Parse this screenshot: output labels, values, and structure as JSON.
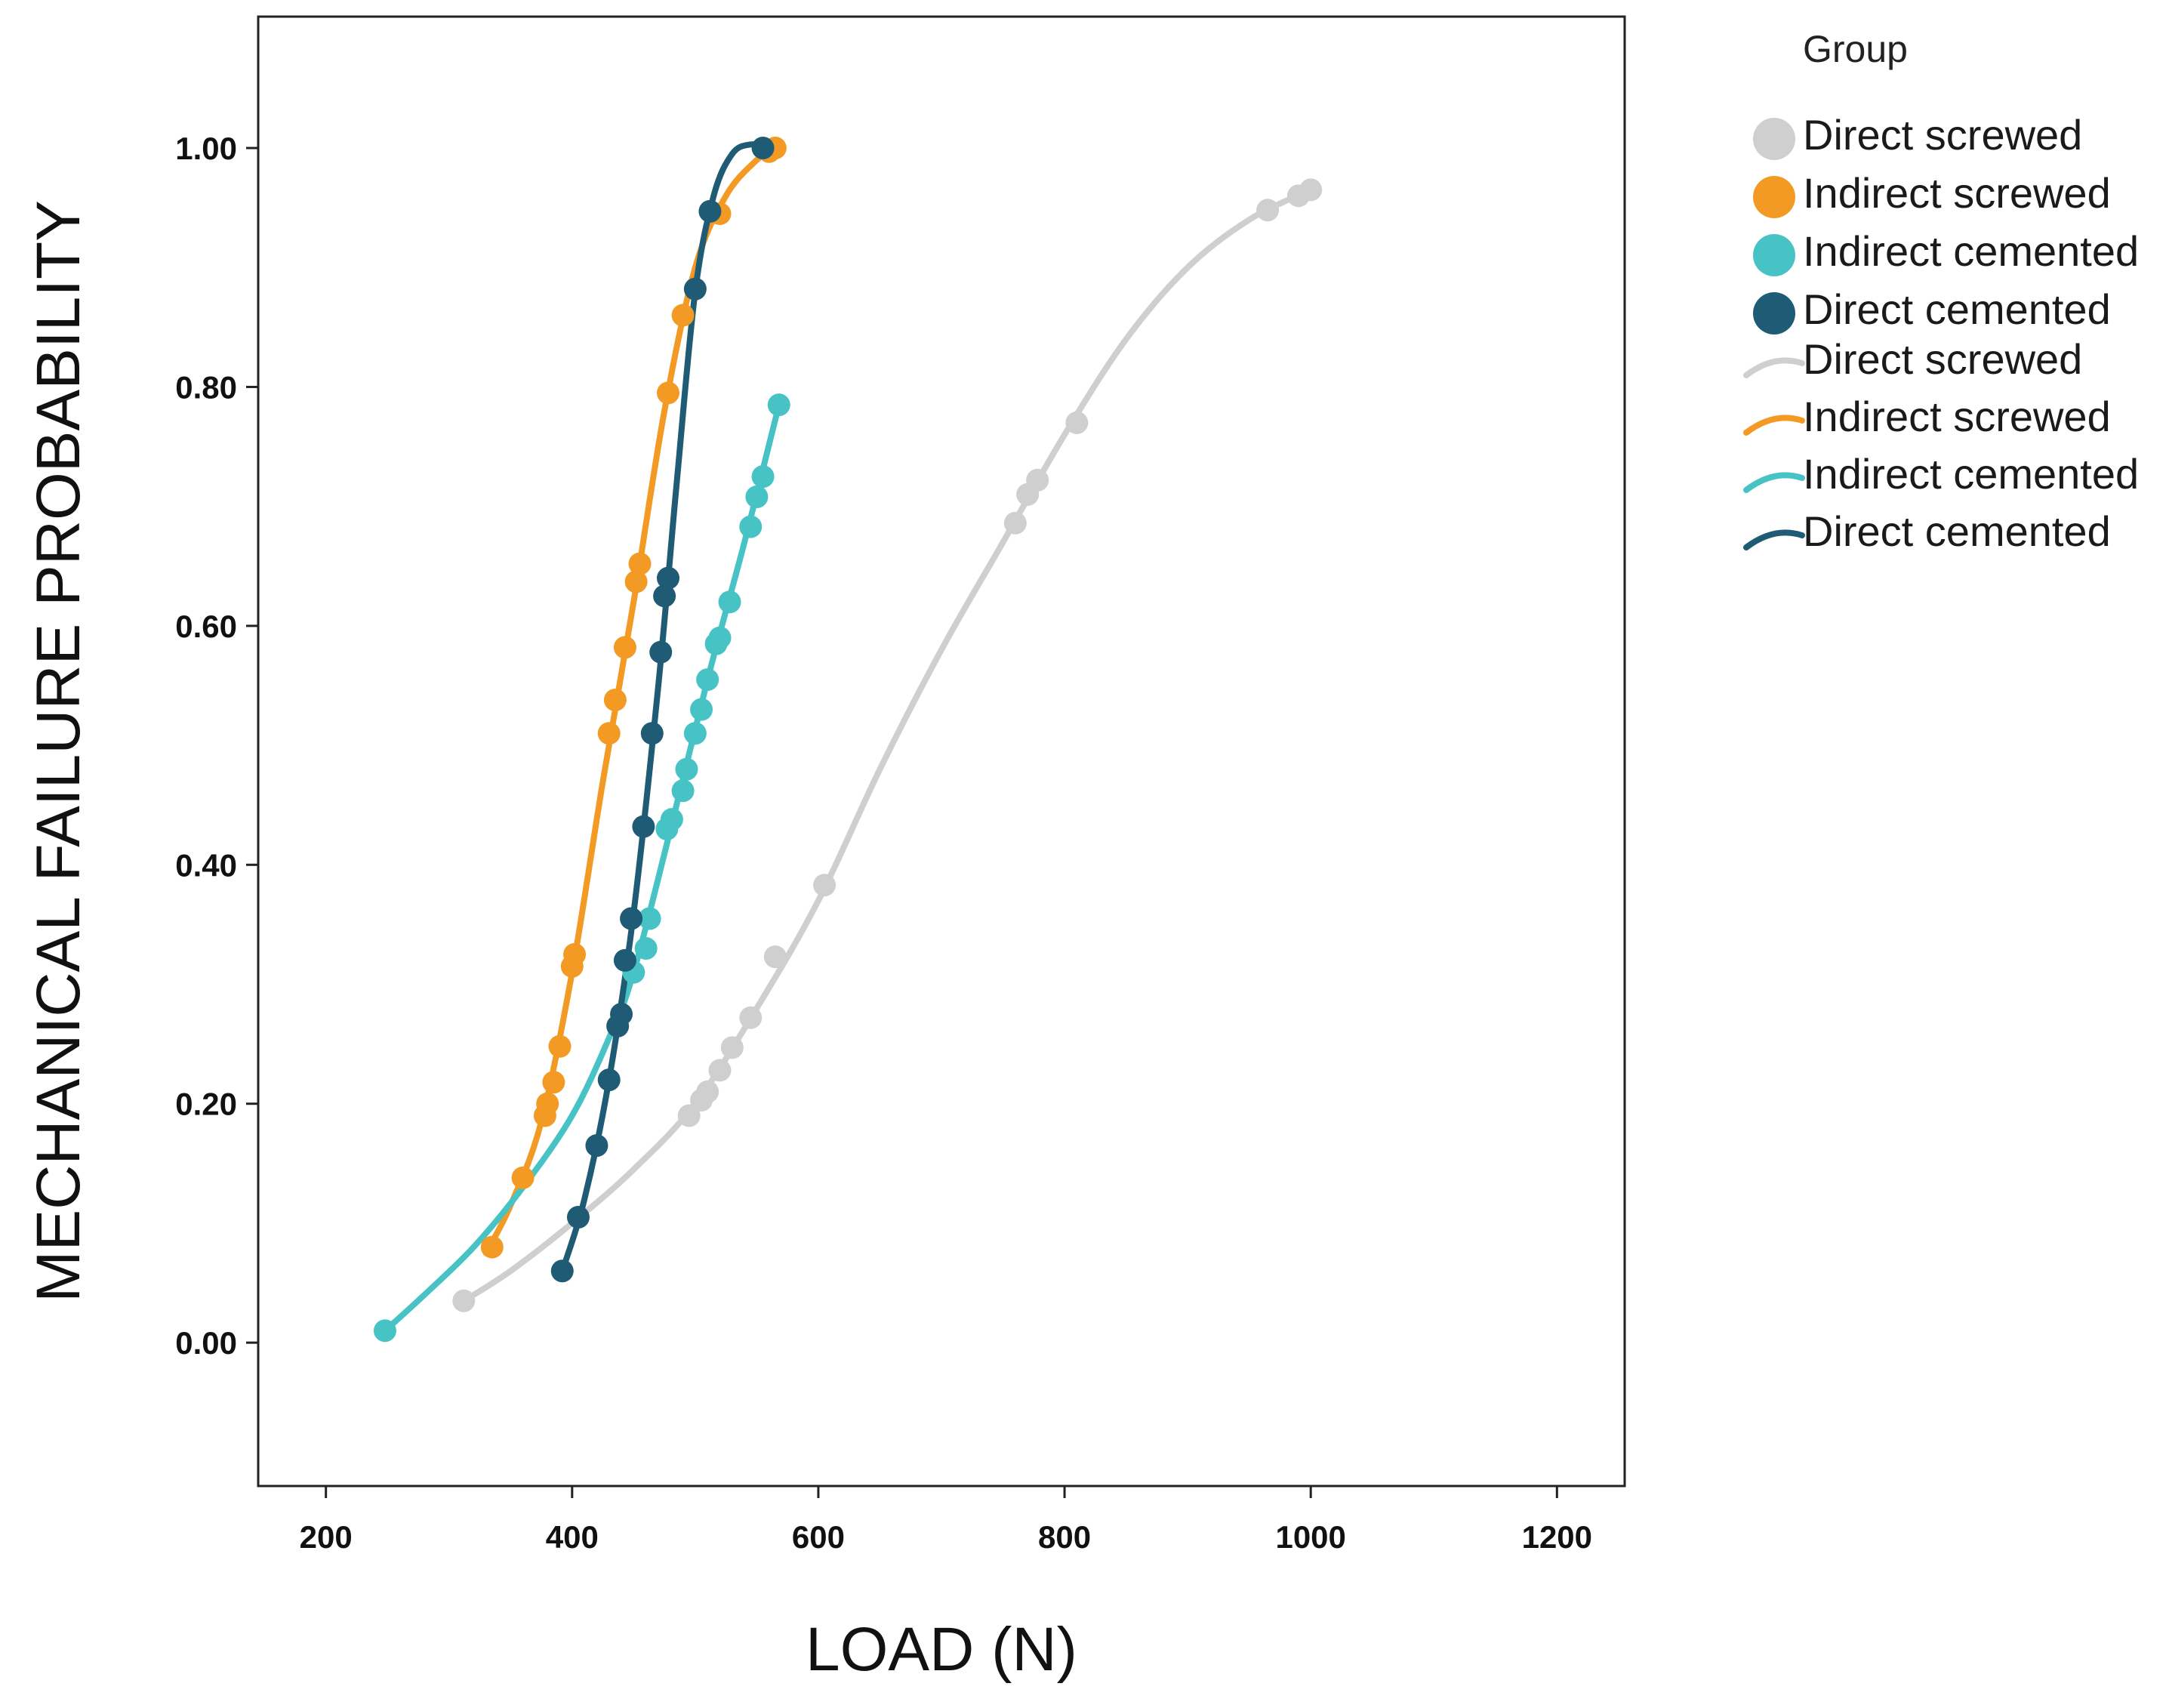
{
  "chart_data": {
    "type": "line",
    "title": "",
    "xlabel": "LOAD (N)",
    "ylabel": "MECHANICAL FAILURE PROBABILITY",
    "xlim": [
      145,
      1255
    ],
    "ylim": [
      -0.12,
      1.11
    ],
    "xticks": [
      200,
      400,
      600,
      800,
      1000,
      1200
    ],
    "xtick_labels": [
      "200",
      "400",
      "600",
      "800",
      "1000",
      "1200"
    ],
    "yticks": [
      0,
      0.2,
      0.4,
      0.6,
      0.8,
      1.0
    ],
    "ytick_labels": [
      "0.00",
      "0.20",
      "0.40",
      "0.60",
      "0.80",
      "1.00"
    ],
    "grid": false,
    "legend": {
      "title": "Group",
      "placement": "right",
      "marker_entries": [
        "Direct screwed",
        "Indirect screwed",
        "Indirect cemented",
        "Direct cemented"
      ],
      "line_entries": [
        "Direct screwed",
        "Indirect screwed",
        "Indirect cemented",
        "Direct cemented"
      ]
    },
    "series": [
      {
        "name": "Direct screwed",
        "color": "#cfcfcf",
        "points": [
          [
            312,
            0.035
          ],
          [
            495,
            0.19
          ],
          [
            505,
            0.203
          ],
          [
            510,
            0.21
          ],
          [
            520,
            0.228
          ],
          [
            530,
            0.247
          ],
          [
            545,
            0.272
          ],
          [
            565,
            0.323
          ],
          [
            605,
            0.383
          ],
          [
            760,
            0.686
          ],
          [
            770,
            0.71
          ],
          [
            778,
            0.722
          ],
          [
            810,
            0.77
          ],
          [
            965,
            0.948
          ],
          [
            990,
            0.96
          ],
          [
            1000,
            0.965
          ]
        ],
        "curve": [
          [
            312,
            0.035
          ],
          [
            350,
            0.06
          ],
          [
            400,
            0.1
          ],
          [
            450,
            0.145
          ],
          [
            500,
            0.2
          ],
          [
            550,
            0.28
          ],
          [
            600,
            0.37
          ],
          [
            650,
            0.48
          ],
          [
            700,
            0.58
          ],
          [
            750,
            0.67
          ],
          [
            800,
            0.76
          ],
          [
            850,
            0.84
          ],
          [
            900,
            0.9
          ],
          [
            950,
            0.94
          ],
          [
            1000,
            0.965
          ]
        ]
      },
      {
        "name": "Indirect screwed",
        "color": "#f39a24",
        "points": [
          [
            335,
            0.08
          ],
          [
            360,
            0.138
          ],
          [
            378,
            0.19
          ],
          [
            380,
            0.2
          ],
          [
            385,
            0.218
          ],
          [
            390,
            0.248
          ],
          [
            400,
            0.315
          ],
          [
            402,
            0.325
          ],
          [
            430,
            0.51
          ],
          [
            435,
            0.538
          ],
          [
            443,
            0.582
          ],
          [
            452,
            0.637
          ],
          [
            455,
            0.652
          ],
          [
            478,
            0.795
          ],
          [
            490,
            0.86
          ],
          [
            520,
            0.945
          ],
          [
            560,
            0.997
          ],
          [
            565,
            1.0
          ]
        ],
        "curve": [
          [
            330,
            0.075
          ],
          [
            350,
            0.115
          ],
          [
            375,
            0.185
          ],
          [
            400,
            0.31
          ],
          [
            425,
            0.47
          ],
          [
            450,
            0.62
          ],
          [
            475,
            0.78
          ],
          [
            500,
            0.9
          ],
          [
            525,
            0.96
          ],
          [
            550,
            0.99
          ],
          [
            565,
            1.0
          ]
        ]
      },
      {
        "name": "Indirect cemented",
        "color": "#47c3c5",
        "points": [
          [
            248,
            0.01
          ],
          [
            450,
            0.31
          ],
          [
            460,
            0.33
          ],
          [
            463,
            0.355
          ],
          [
            477,
            0.43
          ],
          [
            481,
            0.438
          ],
          [
            490,
            0.462
          ],
          [
            493,
            0.48
          ],
          [
            500,
            0.51
          ],
          [
            505,
            0.53
          ],
          [
            510,
            0.555
          ],
          [
            517,
            0.585
          ],
          [
            520,
            0.59
          ],
          [
            528,
            0.62
          ],
          [
            545,
            0.683
          ],
          [
            550,
            0.708
          ],
          [
            555,
            0.725
          ],
          [
            568,
            0.785
          ]
        ],
        "curve": [
          [
            248,
            0.01
          ],
          [
            280,
            0.04
          ],
          [
            320,
            0.08
          ],
          [
            360,
            0.13
          ],
          [
            400,
            0.19
          ],
          [
            430,
            0.255
          ],
          [
            450,
            0.31
          ],
          [
            480,
            0.43
          ],
          [
            510,
            0.555
          ],
          [
            540,
            0.67
          ],
          [
            568,
            0.785
          ]
        ]
      },
      {
        "name": "Direct cemented",
        "color": "#1f5b74",
        "points": [
          [
            392,
            0.06
          ],
          [
            405,
            0.105
          ],
          [
            420,
            0.165
          ],
          [
            430,
            0.22
          ],
          [
            437,
            0.265
          ],
          [
            440,
            0.275
          ],
          [
            443,
            0.32
          ],
          [
            448,
            0.355
          ],
          [
            458,
            0.432
          ],
          [
            465,
            0.51
          ],
          [
            472,
            0.578
          ],
          [
            475,
            0.625
          ],
          [
            478,
            0.64
          ],
          [
            500,
            0.882
          ],
          [
            512,
            0.947
          ],
          [
            555,
            1.0
          ]
        ],
        "curve": [
          [
            392,
            0.06
          ],
          [
            410,
            0.12
          ],
          [
            430,
            0.22
          ],
          [
            450,
            0.36
          ],
          [
            470,
            0.55
          ],
          [
            485,
            0.72
          ],
          [
            500,
            0.88
          ],
          [
            515,
            0.96
          ],
          [
            530,
            0.995
          ],
          [
            545,
            1.003
          ],
          [
            560,
            1.0
          ]
        ]
      }
    ]
  }
}
